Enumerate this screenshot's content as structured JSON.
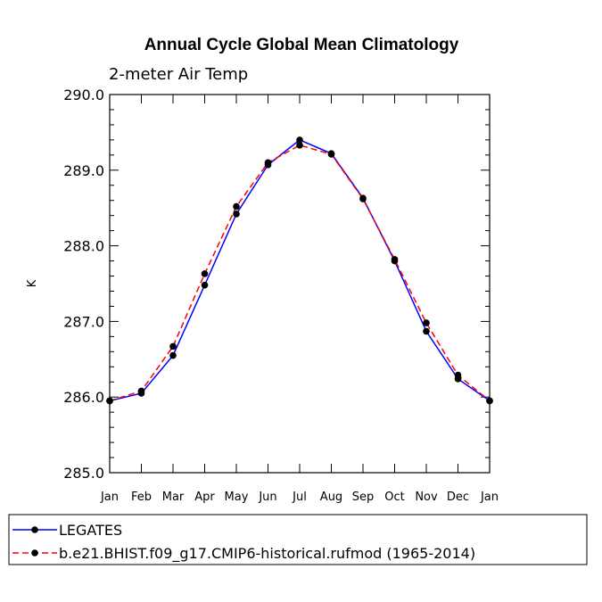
{
  "chart_data": {
    "type": "line",
    "title": "Annual Cycle Global Mean Climatology",
    "subtitle": "2-meter Air Temp",
    "xlabel": "",
    "ylabel": "K",
    "categories": [
      "Jan",
      "Feb",
      "Mar",
      "Apr",
      "May",
      "Jun",
      "Jul",
      "Aug",
      "Sep",
      "Oct",
      "Nov",
      "Dec",
      "Jan"
    ],
    "ylim": [
      285.0,
      290.0
    ],
    "yticks": [
      "285.0",
      "286.0",
      "287.0",
      "288.0",
      "289.0",
      "290.0"
    ],
    "ytick_values": [
      285.0,
      286.0,
      287.0,
      288.0,
      289.0,
      290.0
    ],
    "series": [
      {
        "name": "LEGATES",
        "color": "#0000ff",
        "dash": "solid",
        "values": [
          285.95,
          286.05,
          286.55,
          287.48,
          288.42,
          289.07,
          289.4,
          289.22,
          288.63,
          287.8,
          286.87,
          286.24,
          285.95
        ]
      },
      {
        "name": "b.e21.BHIST.f09_g17.CMIP6-historical.rufmod (1965-2014)",
        "color": "#ff0000",
        "dash": "dashed",
        "values": [
          285.95,
          286.08,
          286.67,
          287.63,
          288.52,
          289.1,
          289.33,
          289.21,
          288.62,
          287.82,
          286.98,
          286.29,
          285.95
        ]
      }
    ],
    "legend_position": "bottom"
  }
}
